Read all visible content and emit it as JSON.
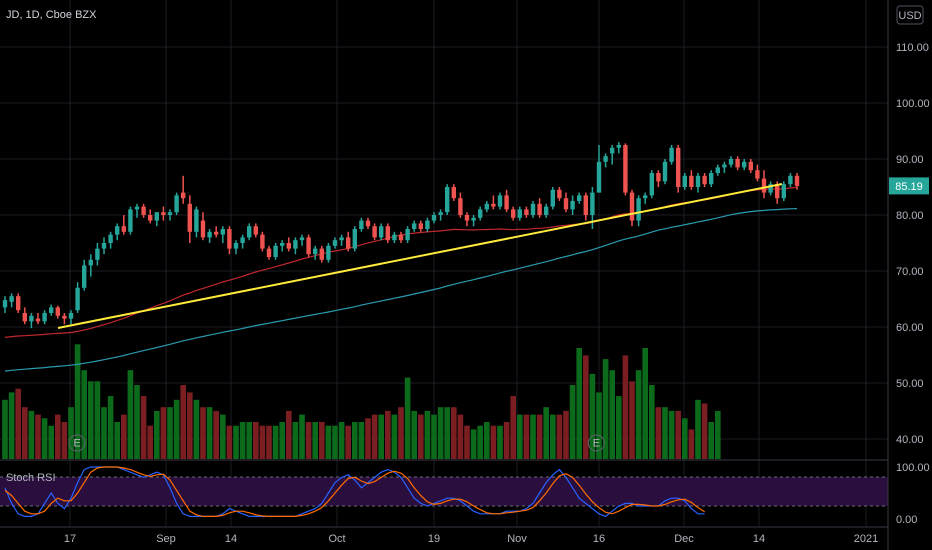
{
  "chart_data": {
    "type": "candlestick",
    "title": "JD, 1D, Cboe BZX",
    "currency": "USD",
    "last_price": "85.19",
    "y_ticks": [
      "110.00",
      "100.00",
      "90.00",
      "80.00",
      "70.00",
      "60.00",
      "50.00",
      "40.00"
    ],
    "x_ticks": [
      "17",
      "Sep",
      "14",
      "Oct",
      "19",
      "Nov",
      "16",
      "Dec",
      "14",
      "2021"
    ],
    "colors": {
      "up": "#26a69a",
      "down": "#ef5350",
      "trendline": "#ffeb3b",
      "ma_red": "#c0282e",
      "ma_teal": "#2a9bb0",
      "stoch_k": "#2962ff",
      "stoch_d": "#ff6d00"
    },
    "candles": [
      {
        "o": 63.5,
        "h": 65.5,
        "l": 62.5,
        "c": 64.8
      },
      {
        "o": 64.5,
        "h": 66,
        "l": 63.5,
        "c": 65.5
      },
      {
        "o": 65.5,
        "h": 66,
        "l": 62.5,
        "c": 63
      },
      {
        "o": 62.5,
        "h": 63.5,
        "l": 60.5,
        "c": 61
      },
      {
        "o": 61,
        "h": 62.5,
        "l": 59.8,
        "c": 62
      },
      {
        "o": 61.5,
        "h": 62.5,
        "l": 60.5,
        "c": 61
      },
      {
        "o": 61,
        "h": 63,
        "l": 60.5,
        "c": 62.5
      },
      {
        "o": 62.5,
        "h": 64,
        "l": 62,
        "c": 63.5
      },
      {
        "o": 63.5,
        "h": 63.8,
        "l": 61.5,
        "c": 62
      },
      {
        "o": 62,
        "h": 62.5,
        "l": 60.5,
        "c": 61.5
      },
      {
        "o": 61.5,
        "h": 63,
        "l": 60.5,
        "c": 62.5
      },
      {
        "o": 63,
        "h": 68,
        "l": 62.5,
        "c": 67
      },
      {
        "o": 67,
        "h": 72,
        "l": 66.5,
        "c": 71
      },
      {
        "o": 71,
        "h": 73,
        "l": 69,
        "c": 72
      },
      {
        "o": 72,
        "h": 75,
        "l": 71,
        "c": 74
      },
      {
        "o": 74,
        "h": 76,
        "l": 73,
        "c": 75
      },
      {
        "o": 75,
        "h": 77,
        "l": 74,
        "c": 76.5
      },
      {
        "o": 76.5,
        "h": 78.5,
        "l": 75.5,
        "c": 78
      },
      {
        "o": 78,
        "h": 80,
        "l": 76.5,
        "c": 77
      },
      {
        "o": 77,
        "h": 81.5,
        "l": 76.5,
        "c": 81
      },
      {
        "o": 81,
        "h": 82,
        "l": 79.5,
        "c": 81.5
      },
      {
        "o": 81.5,
        "h": 82,
        "l": 79.5,
        "c": 80
      },
      {
        "o": 80,
        "h": 81,
        "l": 78.5,
        "c": 79
      },
      {
        "o": 79,
        "h": 80.5,
        "l": 78,
        "c": 80.5
      },
      {
        "o": 80.5,
        "h": 81.5,
        "l": 79,
        "c": 80
      },
      {
        "o": 80,
        "h": 81,
        "l": 79,
        "c": 80.5
      },
      {
        "o": 80.5,
        "h": 84,
        "l": 80,
        "c": 83.5
      },
      {
        "o": 84,
        "h": 87,
        "l": 82,
        "c": 83
      },
      {
        "o": 82,
        "h": 83.5,
        "l": 75,
        "c": 77
      },
      {
        "o": 77,
        "h": 81.5,
        "l": 76,
        "c": 81
      },
      {
        "o": 79,
        "h": 80.5,
        "l": 75.5,
        "c": 76
      },
      {
        "o": 76,
        "h": 77.5,
        "l": 75,
        "c": 77
      },
      {
        "o": 77,
        "h": 78,
        "l": 76,
        "c": 76.5
      },
      {
        "o": 76.5,
        "h": 78,
        "l": 75,
        "c": 77.5
      },
      {
        "o": 77.5,
        "h": 78,
        "l": 73,
        "c": 74
      },
      {
        "o": 74,
        "h": 75.5,
        "l": 73,
        "c": 75
      },
      {
        "o": 75,
        "h": 76.5,
        "l": 74,
        "c": 76
      },
      {
        "o": 76,
        "h": 78.5,
        "l": 75.5,
        "c": 78
      },
      {
        "o": 78,
        "h": 78.5,
        "l": 76,
        "c": 76.5
      },
      {
        "o": 76.5,
        "h": 77,
        "l": 73.5,
        "c": 74
      },
      {
        "o": 74,
        "h": 74.5,
        "l": 72,
        "c": 72.5
      },
      {
        "o": 72.5,
        "h": 75,
        "l": 72,
        "c": 74.5
      },
      {
        "o": 74.5,
        "h": 75.5,
        "l": 73.5,
        "c": 75
      },
      {
        "o": 75,
        "h": 76,
        "l": 73.5,
        "c": 74
      },
      {
        "o": 74,
        "h": 76,
        "l": 73,
        "c": 75.5
      },
      {
        "o": 75.5,
        "h": 76.5,
        "l": 74.5,
        "c": 76
      },
      {
        "o": 76,
        "h": 76.5,
        "l": 72.5,
        "c": 73
      },
      {
        "o": 73,
        "h": 74.5,
        "l": 72,
        "c": 74
      },
      {
        "o": 74,
        "h": 74.5,
        "l": 71.5,
        "c": 72
      },
      {
        "o": 72,
        "h": 75,
        "l": 71.5,
        "c": 74.5
      },
      {
        "o": 74.5,
        "h": 76,
        "l": 74,
        "c": 75.5
      },
      {
        "o": 75.5,
        "h": 76.5,
        "l": 74.5,
        "c": 76
      },
      {
        "o": 76,
        "h": 77,
        "l": 73.5,
        "c": 74
      },
      {
        "o": 74,
        "h": 78,
        "l": 73.5,
        "c": 77.5
      },
      {
        "o": 77.5,
        "h": 79.5,
        "l": 77,
        "c": 79
      },
      {
        "o": 79,
        "h": 79.5,
        "l": 77.5,
        "c": 78
      },
      {
        "o": 78,
        "h": 78.5,
        "l": 75.5,
        "c": 76
      },
      {
        "o": 76,
        "h": 78.5,
        "l": 75.5,
        "c": 78
      },
      {
        "o": 78,
        "h": 78.5,
        "l": 75,
        "c": 75.5
      },
      {
        "o": 75.5,
        "h": 77,
        "l": 75,
        "c": 76.5
      },
      {
        "o": 76.5,
        "h": 77,
        "l": 75,
        "c": 75.5
      },
      {
        "o": 75.5,
        "h": 78,
        "l": 75,
        "c": 77.5
      },
      {
        "o": 77.5,
        "h": 79,
        "l": 77,
        "c": 78.5
      },
      {
        "o": 78.5,
        "h": 79,
        "l": 77,
        "c": 77.5
      },
      {
        "o": 77.5,
        "h": 79.5,
        "l": 77,
        "c": 79
      },
      {
        "o": 79,
        "h": 80.5,
        "l": 78.5,
        "c": 80
      },
      {
        "o": 80,
        "h": 81,
        "l": 79,
        "c": 80.5
      },
      {
        "o": 80.5,
        "h": 85.5,
        "l": 80,
        "c": 85
      },
      {
        "o": 85,
        "h": 85.5,
        "l": 82.5,
        "c": 83
      },
      {
        "o": 83,
        "h": 84,
        "l": 79.5,
        "c": 80
      },
      {
        "o": 80,
        "h": 80.5,
        "l": 78,
        "c": 79
      },
      {
        "o": 79,
        "h": 80,
        "l": 78,
        "c": 79.5
      },
      {
        "o": 79.5,
        "h": 81.5,
        "l": 79,
        "c": 81
      },
      {
        "o": 81,
        "h": 82.5,
        "l": 80.5,
        "c": 82
      },
      {
        "o": 82,
        "h": 83.5,
        "l": 81,
        "c": 81.5
      },
      {
        "o": 81.5,
        "h": 84,
        "l": 81,
        "c": 83.5
      },
      {
        "o": 83.5,
        "h": 84.5,
        "l": 80.5,
        "c": 81
      },
      {
        "o": 81,
        "h": 81.5,
        "l": 79,
        "c": 79.5
      },
      {
        "o": 79.5,
        "h": 81.5,
        "l": 79,
        "c": 81
      },
      {
        "o": 81,
        "h": 81.5,
        "l": 79.5,
        "c": 80
      },
      {
        "o": 80,
        "h": 82.5,
        "l": 79.5,
        "c": 82
      },
      {
        "o": 82,
        "h": 83,
        "l": 79.5,
        "c": 80
      },
      {
        "o": 80,
        "h": 82,
        "l": 79.5,
        "c": 81.5
      },
      {
        "o": 81.5,
        "h": 85,
        "l": 81,
        "c": 84.5
      },
      {
        "o": 84.5,
        "h": 85,
        "l": 82.5,
        "c": 83
      },
      {
        "o": 83,
        "h": 84,
        "l": 80.5,
        "c": 81
      },
      {
        "o": 81,
        "h": 83.5,
        "l": 80,
        "c": 82.5
      },
      {
        "o": 82.5,
        "h": 84,
        "l": 82,
        "c": 83.5
      },
      {
        "o": 83.5,
        "h": 84,
        "l": 79,
        "c": 80
      },
      {
        "o": 80,
        "h": 85,
        "l": 77.5,
        "c": 84
      },
      {
        "o": 84,
        "h": 92.5,
        "l": 84,
        "c": 89.5
      },
      {
        "o": 89.5,
        "h": 91,
        "l": 88.5,
        "c": 90.5
      },
      {
        "o": 91,
        "h": 92.5,
        "l": 89,
        "c": 92
      },
      {
        "o": 92,
        "h": 93,
        "l": 91,
        "c": 92.5
      },
      {
        "o": 92.5,
        "h": 92.8,
        "l": 83.5,
        "c": 84
      },
      {
        "o": 84,
        "h": 84.5,
        "l": 78,
        "c": 79
      },
      {
        "o": 79,
        "h": 83.5,
        "l": 78,
        "c": 83
      },
      {
        "o": 83,
        "h": 84,
        "l": 82,
        "c": 83.5
      },
      {
        "o": 83.5,
        "h": 88,
        "l": 83,
        "c": 87.5
      },
      {
        "o": 87.5,
        "h": 88,
        "l": 85,
        "c": 86
      },
      {
        "o": 86,
        "h": 90,
        "l": 85.5,
        "c": 89.5
      },
      {
        "o": 89.5,
        "h": 92.5,
        "l": 89,
        "c": 92
      },
      {
        "o": 92,
        "h": 92.5,
        "l": 84,
        "c": 85
      },
      {
        "o": 85,
        "h": 87.5,
        "l": 84.5,
        "c": 87
      },
      {
        "o": 87,
        "h": 88,
        "l": 84.5,
        "c": 85
      },
      {
        "o": 85,
        "h": 87.5,
        "l": 84,
        "c": 87
      },
      {
        "o": 87,
        "h": 87.5,
        "l": 85,
        "c": 85.5
      },
      {
        "o": 85.5,
        "h": 88,
        "l": 85,
        "c": 87.5
      },
      {
        "o": 87.5,
        "h": 89,
        "l": 87,
        "c": 88.5
      },
      {
        "o": 88.5,
        "h": 89.5,
        "l": 87.5,
        "c": 89
      },
      {
        "o": 89,
        "h": 90.5,
        "l": 88.5,
        "c": 90
      },
      {
        "o": 90,
        "h": 90.5,
        "l": 88,
        "c": 88.5
      },
      {
        "o": 88.5,
        "h": 90,
        "l": 88,
        "c": 89.5
      },
      {
        "o": 89.5,
        "h": 90,
        "l": 87.5,
        "c": 88
      },
      {
        "o": 88,
        "h": 89,
        "l": 86,
        "c": 86.5
      },
      {
        "o": 86.5,
        "h": 88,
        "l": 83,
        "c": 84
      },
      {
        "o": 84,
        "h": 86,
        "l": 83.5,
        "c": 85.5
      },
      {
        "o": 85.5,
        "h": 86,
        "l": 82,
        "c": 83
      },
      {
        "o": 83,
        "h": 86,
        "l": 82.5,
        "c": 85.5
      },
      {
        "o": 85.5,
        "h": 87.5,
        "l": 85,
        "c": 87
      },
      {
        "o": 87,
        "h": 87.5,
        "l": 84.5,
        "c": 85.19
      }
    ],
    "volumes": [
      8,
      9,
      9.5,
      7,
      6.5,
      6,
      5.5,
      4.5,
      6,
      5,
      7,
      15.5,
      12,
      10.5,
      10.5,
      7,
      8.5,
      5,
      6,
      12,
      10,
      8.5,
      4.5,
      6.5,
      7,
      7,
      8,
      10,
      9,
      8,
      7,
      7,
      6.5,
      6,
      4.5,
      4.5,
      5,
      5,
      5,
      4.5,
      4.5,
      4.5,
      5,
      6.5,
      5,
      6,
      5,
      5,
      5,
      4.5,
      4.5,
      5,
      4.5,
      5,
      5,
      5.5,
      6,
      6,
      6.5,
      6,
      7,
      11,
      6.5,
      6,
      6.5,
      6,
      7,
      7,
      7,
      6,
      4.5,
      4,
      4.5,
      5,
      4.5,
      4.5,
      5,
      8.5,
      6,
      6,
      6,
      6,
      7,
      6,
      6,
      6.5,
      10,
      15,
      14,
      11.5,
      9,
      13.5,
      12,
      8.5,
      14,
      10.5,
      12,
      15,
      10,
      7,
      7,
      6.5,
      6.5,
      5.5,
      4,
      8,
      7.5,
      5,
      6.5
    ],
    "volume_markers": [
      "E",
      "E"
    ],
    "stoch_rsi": {
      "label": "Stoch RSI",
      "y_ticks": [
        "100.00",
        "0.00"
      ],
      "k": [
        60,
        30,
        10,
        5,
        5,
        10,
        30,
        50,
        30,
        20,
        40,
        70,
        95,
        100,
        100,
        100,
        100,
        100,
        95,
        90,
        85,
        80,
        85,
        90,
        85,
        60,
        30,
        10,
        5,
        5,
        5,
        5,
        5,
        10,
        20,
        15,
        10,
        5,
        5,
        5,
        5,
        5,
        5,
        5,
        5,
        10,
        15,
        20,
        30,
        50,
        70,
        80,
        85,
        75,
        60,
        70,
        80,
        90,
        95,
        90,
        80,
        60,
        40,
        30,
        25,
        30,
        35,
        40,
        40,
        35,
        25,
        15,
        10,
        10,
        10,
        10,
        15,
        15,
        15,
        20,
        30,
        50,
        70,
        85,
        95,
        80,
        60,
        40,
        30,
        20,
        10,
        5,
        15,
        25,
        30,
        30,
        25,
        25,
        25,
        25,
        35,
        40,
        40,
        35,
        20,
        10,
        10
      ],
      "d": [
        55,
        45,
        30,
        15,
        10,
        10,
        15,
        30,
        40,
        35,
        35,
        50,
        70,
        90,
        98,
        100,
        100,
        100,
        98,
        95,
        90,
        85,
        82,
        85,
        86,
        75,
        55,
        35,
        15,
        8,
        5,
        5,
        5,
        7,
        12,
        15,
        15,
        12,
        8,
        6,
        5,
        5,
        5,
        5,
        5,
        7,
        10,
        15,
        22,
        35,
        50,
        65,
        78,
        80,
        73,
        68,
        72,
        80,
        88,
        92,
        88,
        78,
        60,
        45,
        33,
        28,
        30,
        35,
        38,
        38,
        33,
        25,
        18,
        12,
        10,
        10,
        12,
        13,
        15,
        17,
        22,
        35,
        50,
        68,
        83,
        87,
        80,
        65,
        48,
        33,
        22,
        13,
        10,
        15,
        22,
        28,
        28,
        27,
        25,
        25,
        28,
        33,
        37,
        38,
        32,
        22,
        14
      ]
    }
  }
}
